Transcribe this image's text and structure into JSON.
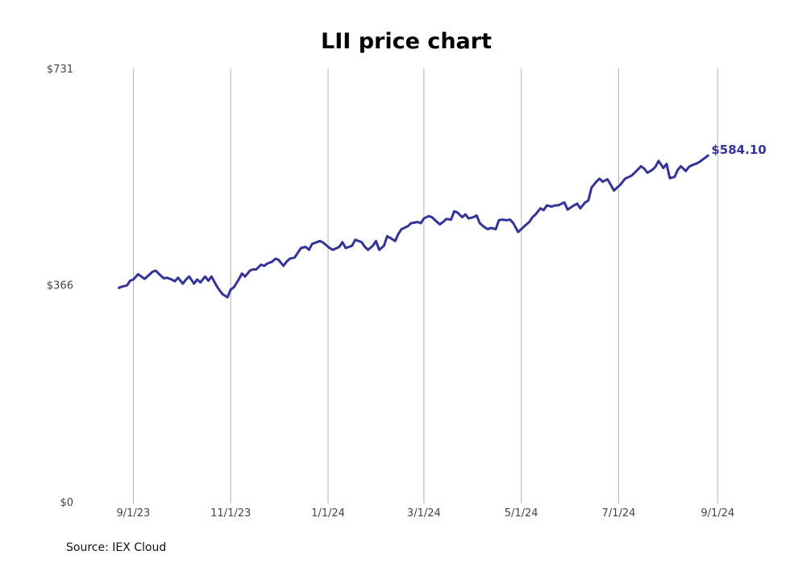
{
  "chart_data": {
    "type": "line",
    "title": "LII price chart",
    "source": "Source: IEX Cloud",
    "line_color": "#333399",
    "grid_color": "#b3b3b3",
    "x_range": [
      "2023-08-01",
      "2024-09-15"
    ],
    "ylim": [
      0,
      731
    ],
    "y_ticks": [
      {
        "value": 0,
        "label": "$0"
      },
      {
        "value": 366,
        "label": "$366"
      },
      {
        "value": 731,
        "label": "$731"
      }
    ],
    "x_ticks": [
      {
        "date": "2023-09-01",
        "label": "9/1/23"
      },
      {
        "date": "2023-11-01",
        "label": "11/1/23"
      },
      {
        "date": "2024-01-01",
        "label": "1/1/24"
      },
      {
        "date": "2024-03-01",
        "label": "3/1/24"
      },
      {
        "date": "2024-05-01",
        "label": "5/1/24"
      },
      {
        "date": "2024-07-01",
        "label": "7/1/24"
      },
      {
        "date": "2024-09-01",
        "label": "9/1/24"
      }
    ],
    "grid": "vertical",
    "last_value_label": "$584.10",
    "series": [
      {
        "points": [
          [
            "2023-08-23",
            361
          ],
          [
            "2023-08-25",
            363
          ],
          [
            "2023-08-28",
            365
          ],
          [
            "2023-08-30",
            373
          ],
          [
            "2023-09-01",
            375
          ],
          [
            "2023-09-04",
            384
          ],
          [
            "2023-09-06",
            380
          ],
          [
            "2023-09-08",
            376
          ],
          [
            "2023-09-11",
            383
          ],
          [
            "2023-09-13",
            388
          ],
          [
            "2023-09-15",
            390
          ],
          [
            "2023-09-18",
            382
          ],
          [
            "2023-09-20",
            377
          ],
          [
            "2023-09-22",
            378
          ],
          [
            "2023-09-25",
            375
          ],
          [
            "2023-09-27",
            372
          ],
          [
            "2023-09-29",
            378
          ],
          [
            "2023-10-02",
            368
          ],
          [
            "2023-10-04",
            375
          ],
          [
            "2023-10-06",
            380
          ],
          [
            "2023-10-09",
            368
          ],
          [
            "2023-10-11",
            375
          ],
          [
            "2023-10-13",
            370
          ],
          [
            "2023-10-16",
            380
          ],
          [
            "2023-10-18",
            373
          ],
          [
            "2023-10-20",
            380
          ],
          [
            "2023-10-23",
            365
          ],
          [
            "2023-10-25",
            357
          ],
          [
            "2023-10-27",
            350
          ],
          [
            "2023-10-30",
            345
          ],
          [
            "2023-11-01",
            358
          ],
          [
            "2023-11-03",
            362
          ],
          [
            "2023-11-06",
            375
          ],
          [
            "2023-11-08",
            385
          ],
          [
            "2023-11-10",
            380
          ],
          [
            "2023-11-13",
            390
          ],
          [
            "2023-11-15",
            392
          ],
          [
            "2023-11-17",
            392
          ],
          [
            "2023-11-20",
            400
          ],
          [
            "2023-11-22",
            398
          ],
          [
            "2023-11-24",
            402
          ],
          [
            "2023-11-27",
            405
          ],
          [
            "2023-11-29",
            410
          ],
          [
            "2023-12-01",
            408
          ],
          [
            "2023-12-04",
            398
          ],
          [
            "2023-12-06",
            405
          ],
          [
            "2023-12-08",
            410
          ],
          [
            "2023-12-11",
            412
          ],
          [
            "2023-12-13",
            420
          ],
          [
            "2023-12-15",
            428
          ],
          [
            "2023-12-18",
            430
          ],
          [
            "2023-12-20",
            425
          ],
          [
            "2023-12-22",
            435
          ],
          [
            "2023-12-27",
            440
          ],
          [
            "2023-12-29",
            437
          ],
          [
            "2024-01-02",
            428
          ],
          [
            "2024-01-04",
            425
          ],
          [
            "2024-01-08",
            430
          ],
          [
            "2024-01-10",
            438
          ],
          [
            "2024-01-12",
            428
          ],
          [
            "2024-01-16",
            432
          ],
          [
            "2024-01-18",
            442
          ],
          [
            "2024-01-22",
            438
          ],
          [
            "2024-01-24",
            430
          ],
          [
            "2024-01-26",
            425
          ],
          [
            "2024-01-29",
            432
          ],
          [
            "2024-01-31",
            440
          ],
          [
            "2024-02-02",
            425
          ],
          [
            "2024-02-05",
            432
          ],
          [
            "2024-02-07",
            448
          ],
          [
            "2024-02-09",
            445
          ],
          [
            "2024-02-12",
            440
          ],
          [
            "2024-02-14",
            452
          ],
          [
            "2024-02-16",
            460
          ],
          [
            "2024-02-20",
            465
          ],
          [
            "2024-02-22",
            470
          ],
          [
            "2024-02-26",
            472
          ],
          [
            "2024-02-28",
            470
          ],
          [
            "2024-03-01",
            478
          ],
          [
            "2024-03-04",
            482
          ],
          [
            "2024-03-06",
            480
          ],
          [
            "2024-03-08",
            475
          ],
          [
            "2024-03-11",
            468
          ],
          [
            "2024-03-13",
            472
          ],
          [
            "2024-03-15",
            477
          ],
          [
            "2024-03-18",
            476
          ],
          [
            "2024-03-20",
            490
          ],
          [
            "2024-03-22",
            488
          ],
          [
            "2024-03-25",
            480
          ],
          [
            "2024-03-27",
            485
          ],
          [
            "2024-03-29",
            478
          ],
          [
            "2024-04-01",
            480
          ],
          [
            "2024-04-03",
            483
          ],
          [
            "2024-04-05",
            470
          ],
          [
            "2024-04-08",
            463
          ],
          [
            "2024-04-10",
            460
          ],
          [
            "2024-04-12",
            462
          ],
          [
            "2024-04-15",
            460
          ],
          [
            "2024-04-17",
            475
          ],
          [
            "2024-04-19",
            476
          ],
          [
            "2024-04-22",
            475
          ],
          [
            "2024-04-24",
            476
          ],
          [
            "2024-04-26",
            470
          ],
          [
            "2024-04-29",
            455
          ],
          [
            "2024-05-01",
            460
          ],
          [
            "2024-05-03",
            465
          ],
          [
            "2024-05-06",
            472
          ],
          [
            "2024-05-08",
            480
          ],
          [
            "2024-05-10",
            485
          ],
          [
            "2024-05-13",
            495
          ],
          [
            "2024-05-15",
            492
          ],
          [
            "2024-05-17",
            500
          ],
          [
            "2024-05-20",
            498
          ],
          [
            "2024-05-22",
            500
          ],
          [
            "2024-05-24",
            500
          ],
          [
            "2024-05-28",
            505
          ],
          [
            "2024-05-30",
            493
          ],
          [
            "2024-06-03",
            500
          ],
          [
            "2024-06-05",
            503
          ],
          [
            "2024-06-07",
            495
          ],
          [
            "2024-06-10",
            505
          ],
          [
            "2024-06-12",
            508
          ],
          [
            "2024-06-14",
            530
          ],
          [
            "2024-06-17",
            540
          ],
          [
            "2024-06-19",
            545
          ],
          [
            "2024-06-21",
            540
          ],
          [
            "2024-06-24",
            544
          ],
          [
            "2024-06-26",
            535
          ],
          [
            "2024-06-28",
            525
          ],
          [
            "2024-07-02",
            535
          ],
          [
            "2024-07-05",
            545
          ],
          [
            "2024-07-09",
            550
          ],
          [
            "2024-07-11",
            555
          ],
          [
            "2024-07-15",
            566
          ],
          [
            "2024-07-17",
            562
          ],
          [
            "2024-07-19",
            555
          ],
          [
            "2024-07-22",
            560
          ],
          [
            "2024-07-24",
            565
          ],
          [
            "2024-07-26",
            575
          ],
          [
            "2024-07-29",
            563
          ],
          [
            "2024-07-31",
            570
          ],
          [
            "2024-08-02",
            546
          ],
          [
            "2024-08-05",
            548
          ],
          [
            "2024-08-07",
            560
          ],
          [
            "2024-08-09",
            566
          ],
          [
            "2024-08-12",
            558
          ],
          [
            "2024-08-14",
            565
          ],
          [
            "2024-08-16",
            568
          ],
          [
            "2024-08-19",
            571
          ],
          [
            "2024-08-21",
            574
          ],
          [
            "2024-08-23",
            578
          ],
          [
            "2024-08-26",
            584.1
          ]
        ]
      }
    ]
  }
}
